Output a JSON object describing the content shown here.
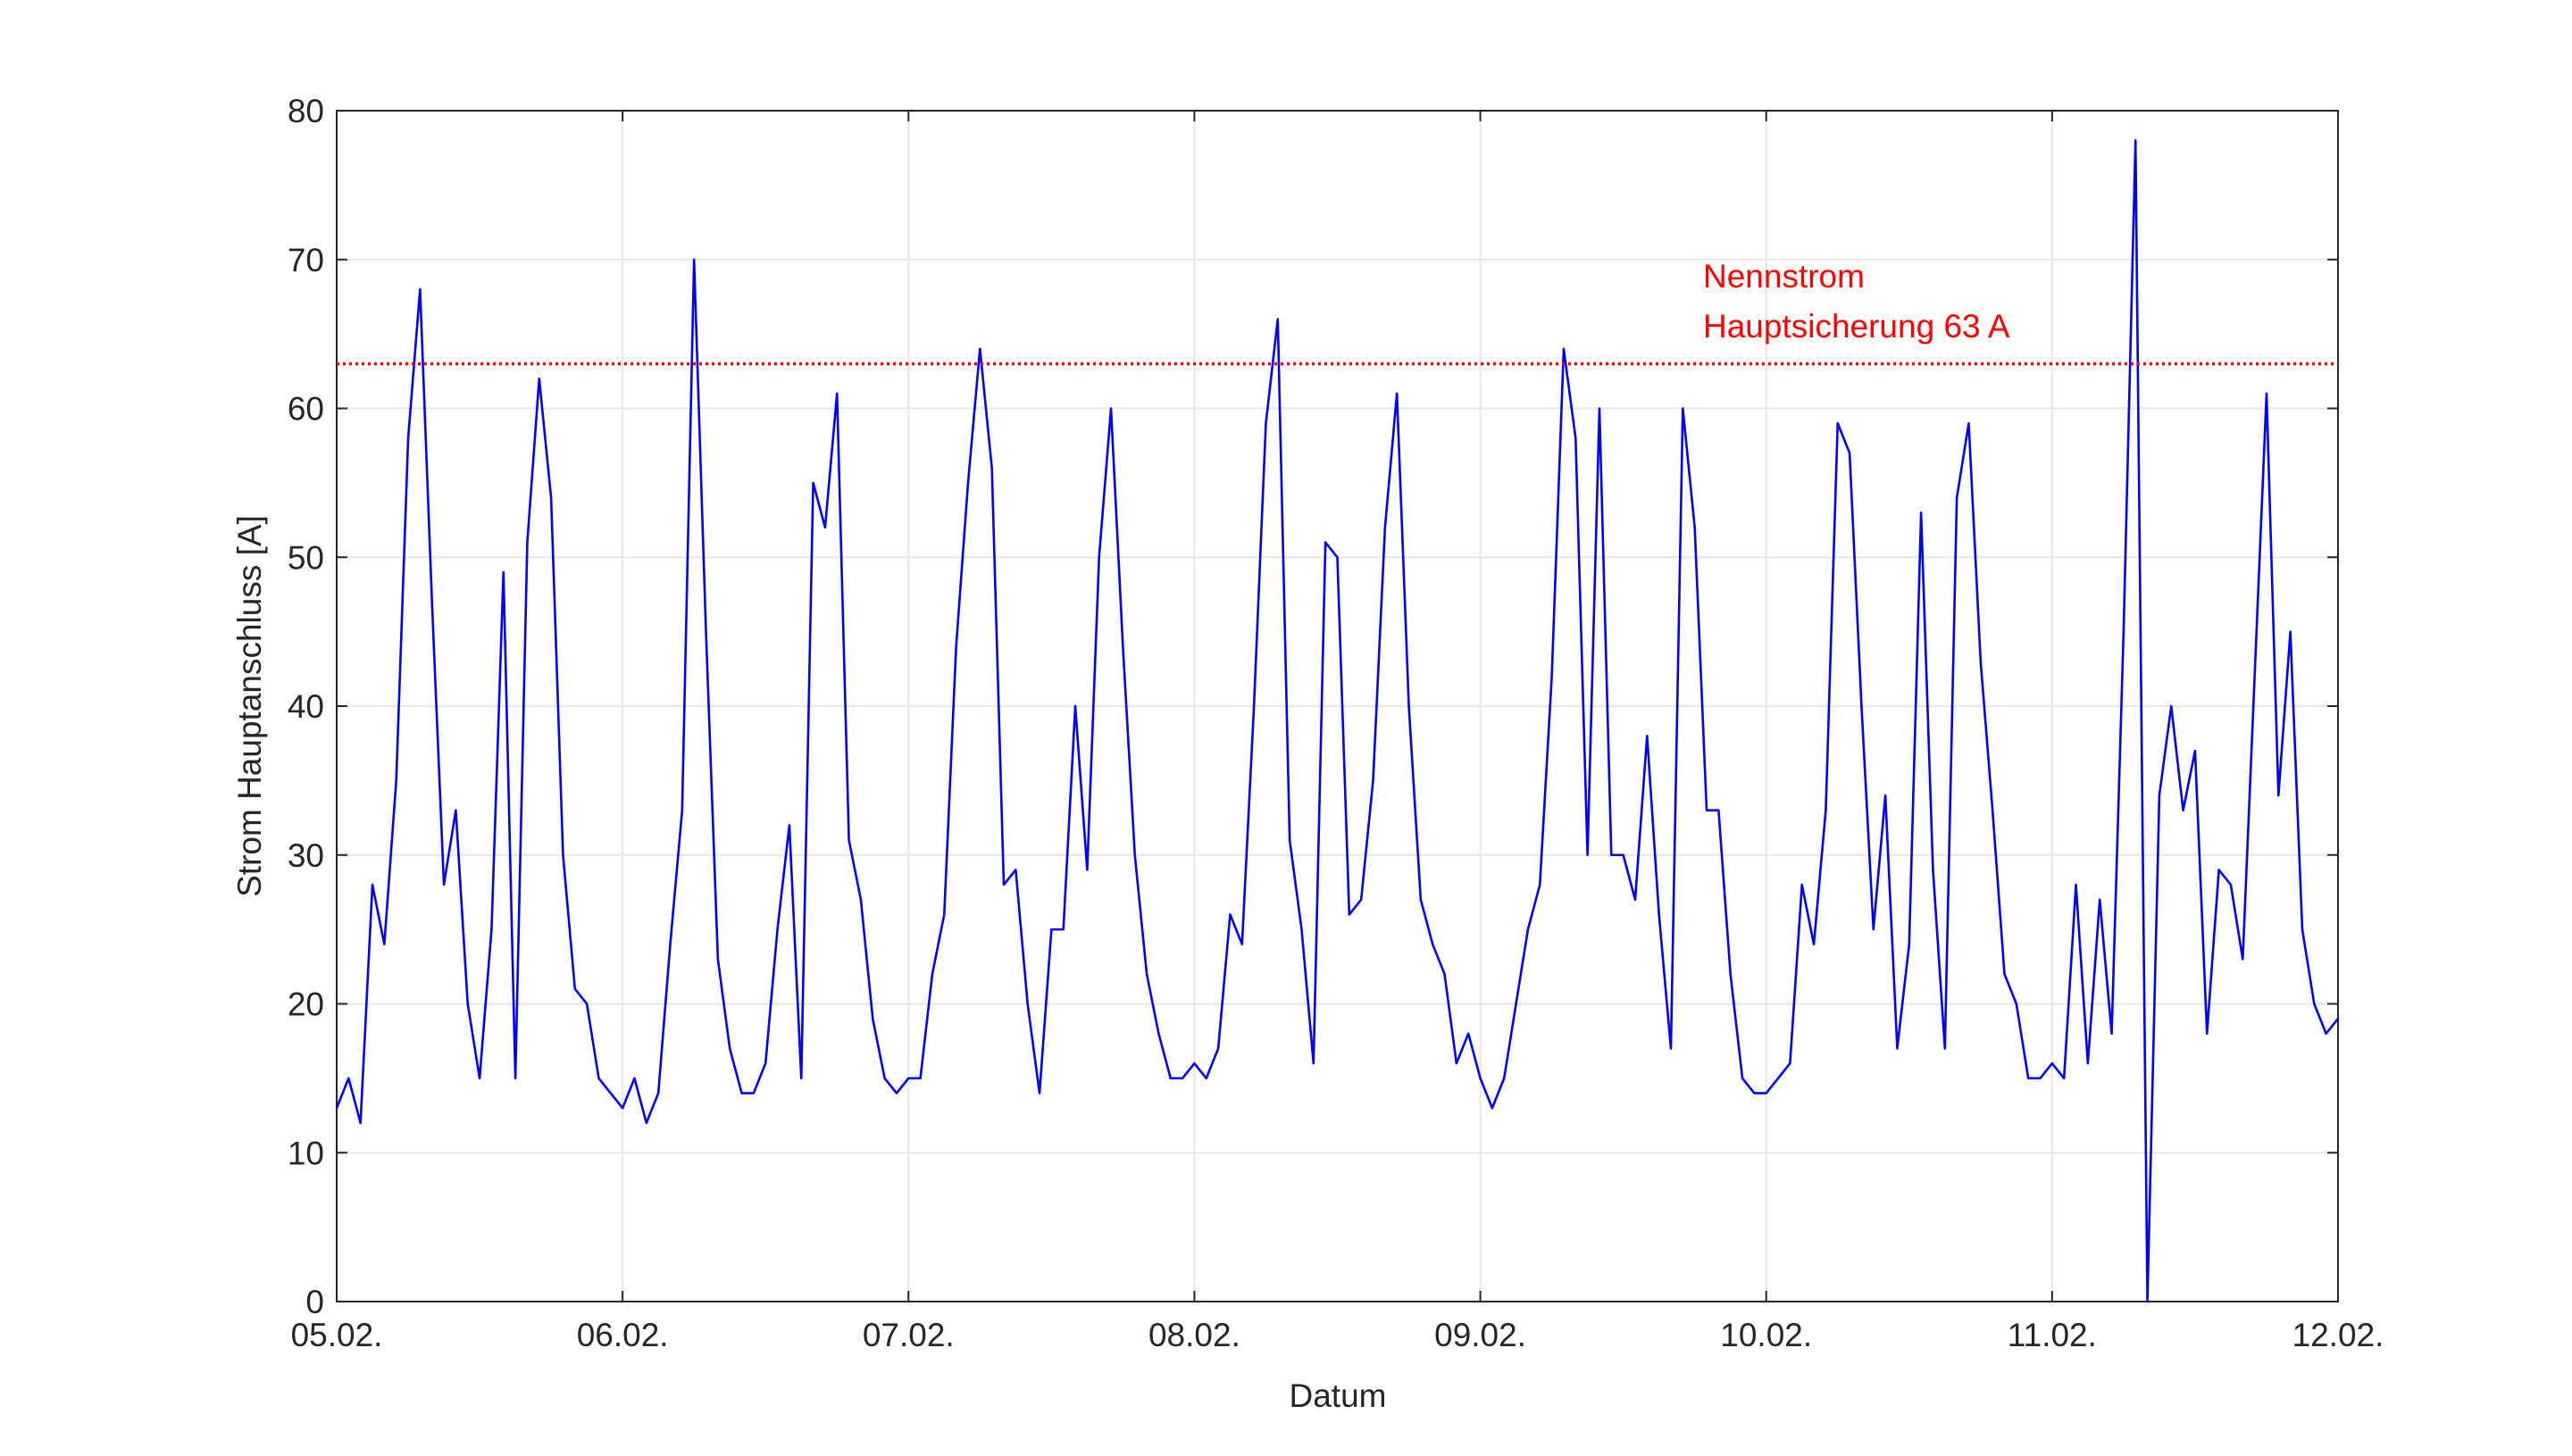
{
  "chart_data": {
    "type": "line",
    "xlabel": "Datum",
    "ylabel": "Strom Hauptanschluss [A]",
    "color": "#0000ff",
    "x": [
      0,
      1,
      2,
      3,
      4,
      5,
      6,
      7,
      8,
      9,
      10,
      11,
      12,
      13,
      14,
      15,
      16,
      17,
      18,
      19,
      20,
      21,
      22,
      23,
      24,
      25,
      26,
      27,
      28,
      29,
      30,
      31,
      32,
      33,
      34,
      35,
      36,
      37,
      38,
      39,
      40,
      41,
      42,
      43,
      44,
      45,
      46,
      47,
      48,
      49,
      50,
      51,
      52,
      53,
      54,
      55,
      56,
      57,
      58,
      59,
      60,
      61,
      62,
      63,
      64,
      65,
      66,
      67,
      68,
      69,
      70,
      71,
      72,
      73,
      74,
      75,
      76,
      77,
      78,
      79,
      80,
      81,
      82,
      83,
      84,
      85,
      86,
      87,
      88,
      89,
      90,
      91,
      92,
      93,
      94,
      95,
      96,
      97,
      98,
      99,
      100,
      101,
      102,
      103,
      104,
      105,
      106,
      107,
      108,
      109,
      110,
      111,
      112,
      113,
      114,
      115,
      116,
      117,
      118,
      119,
      120,
      121,
      122,
      123,
      124,
      125,
      126,
      127,
      128,
      129,
      130,
      131,
      132,
      133,
      134,
      135,
      136,
      137,
      138,
      139,
      140,
      141,
      142,
      143,
      144,
      145,
      146,
      147,
      148,
      149,
      150,
      151,
      152,
      153,
      154,
      155,
      156,
      157,
      158,
      159,
      160,
      161,
      162,
      163,
      164,
      165,
      166,
      167,
      168
    ],
    "values": [
      13,
      15,
      12,
      28,
      24,
      35,
      58,
      68,
      47,
      28,
      33,
      20,
      15,
      25,
      49,
      15,
      51,
      62,
      54,
      30,
      21,
      20,
      15,
      14,
      13,
      15,
      12,
      14,
      24,
      33,
      70,
      45,
      23,
      17,
      14,
      14,
      16,
      25,
      32,
      15,
      55,
      52,
      61,
      31,
      27,
      19,
      15,
      14,
      15,
      15,
      22,
      26,
      44,
      55,
      64,
      56,
      28,
      29,
      20,
      14,
      25,
      25,
      40,
      29,
      50,
      60,
      44,
      30,
      22,
      18,
      15,
      15,
      16,
      15,
      17,
      26,
      24,
      40,
      59,
      66,
      31,
      25,
      16,
      51,
      50,
      26,
      27,
      35,
      52,
      61,
      40,
      27,
      24,
      22,
      16,
      18,
      15,
      13,
      15,
      20,
      25,
      28,
      42,
      64,
      58,
      30,
      60,
      30,
      30,
      27,
      38,
      26,
      17,
      60,
      52,
      33,
      33,
      22,
      15,
      14,
      14,
      15,
      16,
      28,
      24,
      33,
      59,
      57,
      40,
      25,
      34,
      17,
      24,
      53,
      29,
      17,
      54,
      59,
      43,
      33,
      22,
      20,
      15,
      15,
      16,
      15,
      28,
      16,
      27,
      18,
      45,
      78,
      0,
      34,
      40,
      33,
      37,
      18,
      29,
      28,
      23,
      42,
      61,
      34,
      45,
      25,
      20,
      18,
      19
    ],
    "xlim": [
      0,
      168
    ],
    "xticks": [
      {
        "value": 0,
        "label": "05.02."
      },
      {
        "value": 24,
        "label": "06.02."
      },
      {
        "value": 48,
        "label": "07.02."
      },
      {
        "value": 72,
        "label": "08.02."
      },
      {
        "value": 96,
        "label": "09.02."
      },
      {
        "value": 120,
        "label": "10.02."
      },
      {
        "value": 144,
        "label": "11.02."
      },
      {
        "value": 168,
        "label": "12.02."
      }
    ],
    "ylim": [
      0,
      80
    ],
    "yticks": [
      0,
      10,
      20,
      30,
      40,
      50,
      60,
      70,
      80
    ],
    "grid": true,
    "reference_line": {
      "y": 63,
      "color": "#ff0000"
    },
    "annotation": [
      "Nennstrom",
      "Hauptsicherung 63 A"
    ]
  }
}
